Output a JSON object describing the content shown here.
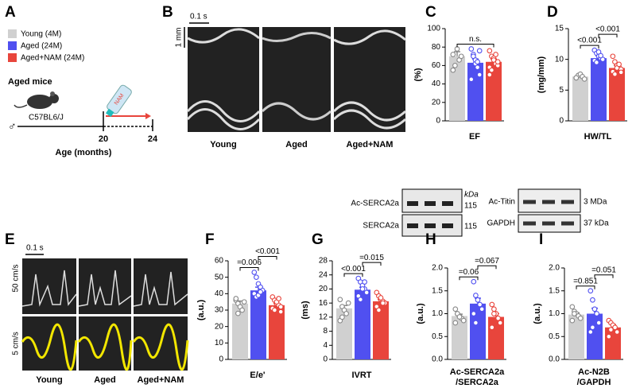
{
  "panels": {
    "A": {
      "letter": "A",
      "groups": [
        {
          "name": "Young (4M)",
          "color": "#d0d0d0"
        },
        {
          "name": "Aged (24M)",
          "color": "#5050f0"
        },
        {
          "name": "Aged+NAM (24M)",
          "color": "#e8453c"
        }
      ],
      "heading": "Aged mice",
      "strain": "C57BL6/J",
      "sex": "♂",
      "bottle": "NAM",
      "start": "20",
      "end": "24",
      "axis": "Age (months)"
    },
    "B": {
      "letter": "B",
      "time_scale": "0.1 s",
      "length_scale": "1 mm",
      "labels": [
        "Young",
        "Aged",
        "Aged+NAM"
      ]
    },
    "E": {
      "letter": "E",
      "time_scale": "0.1 s",
      "top_scale": "50 cm/s",
      "bottom_scale": "5 cm/s",
      "labels": [
        "Young",
        "Aged",
        "Aged+NAM"
      ]
    },
    "blot_H": {
      "band1": "Ac-SERCA2a",
      "unit": "kDa",
      "size1": "115",
      "band2": "SERCA2a",
      "size2": "115"
    },
    "blot_I": {
      "band1": "Ac-Titin",
      "size1": "3 MDa",
      "band2": "GAPDH",
      "size2": "37 kDa"
    }
  },
  "chart_data": [
    {
      "type": "bar",
      "panel": "C",
      "ylabel": "(%)",
      "xlabel": "EF",
      "categories": [
        null,
        null,
        null
      ],
      "colors": [
        "#d0d0d0",
        "#5050f0",
        "#e8453c"
      ],
      "values": [
        70,
        63,
        64
      ],
      "errors": [
        5,
        4,
        3
      ],
      "points": [
        [
          72,
          60,
          78,
          66,
          70,
          55
        ],
        [
          78,
          72,
          62,
          58,
          50,
          45,
          70,
          66,
          64,
          76
        ],
        [
          76,
          70,
          68,
          62,
          60,
          58,
          55,
          66,
          72,
          64,
          50
        ]
      ],
      "ylim": [
        0,
        100
      ],
      "yticks": [
        0,
        20,
        40,
        60,
        80,
        100
      ],
      "annotations": [
        {
          "label": "n.s.",
          "bars": [
            0,
            2
          ]
        }
      ]
    },
    {
      "type": "bar",
      "panel": "D",
      "ylabel": "(mg/mm)",
      "xlabel": "HW/TL",
      "categories": [
        null,
        null,
        null
      ],
      "colors": [
        "#d0d0d0",
        "#5050f0",
        "#e8453c"
      ],
      "values": [
        7.2,
        10.2,
        8.6
      ],
      "errors": [
        0.2,
        0.4,
        0.4
      ],
      "points": [
        [
          7.0,
          7.4,
          7.6,
          7.2,
          6.8,
          7.0
        ],
        [
          11.5,
          11.0,
          10.5,
          10.2,
          10.0,
          9.8,
          9.5,
          11.2,
          10.6
        ],
        [
          10.5,
          9.6,
          9.0,
          8.8,
          8.4,
          8.0,
          7.6,
          8.6,
          9.2,
          7.9
        ]
      ],
      "ylim": [
        0,
        15
      ],
      "yticks": [
        0,
        5,
        10,
        15
      ],
      "annotations": [
        {
          "label": "<0.001",
          "bars": [
            0,
            1
          ]
        },
        {
          "label": "<0.001",
          "bars": [
            1,
            2
          ]
        }
      ]
    },
    {
      "type": "bar",
      "panel": "F",
      "ylabel": "(a.u.)",
      "xlabel": "E/e'",
      "categories": [
        null,
        null,
        null
      ],
      "colors": [
        "#d0d0d0",
        "#5050f0",
        "#e8453c"
      ],
      "values": [
        34,
        42,
        33
      ],
      "errors": [
        1.5,
        2,
        1
      ],
      "points": [
        [
          36,
          34,
          32,
          30,
          35,
          37,
          28
        ],
        [
          53,
          50,
          46,
          44,
          42,
          40,
          38,
          39,
          41
        ],
        [
          38,
          36,
          34,
          33,
          32,
          31,
          30,
          35,
          37,
          29
        ]
      ],
      "ylim": [
        0,
        60
      ],
      "yticks": [
        0,
        10,
        20,
        30,
        40,
        50,
        60
      ],
      "annotations": [
        {
          "label": "=0.006",
          "bars": [
            0,
            1
          ]
        },
        {
          "label": "<0.001",
          "bars": [
            1,
            2
          ]
        }
      ]
    },
    {
      "type": "bar",
      "panel": "G",
      "ylabel": "(ms)",
      "xlabel": "IVRT",
      "categories": [
        null,
        null,
        null
      ],
      "colors": [
        "#d0d0d0",
        "#5050f0",
        "#e8453c"
      ],
      "values": [
        14.5,
        19.8,
        16.5
      ],
      "errors": [
        0.8,
        0.7,
        0.5
      ],
      "points": [
        [
          17,
          15,
          14,
          13,
          16,
          11,
          12
        ],
        [
          23,
          22,
          21,
          20,
          19,
          18,
          17,
          20,
          22
        ],
        [
          19,
          18,
          17,
          16.5,
          16,
          15,
          14,
          17.5,
          16
        ]
      ],
      "ylim": [
        0,
        28
      ],
      "yticks": [
        0,
        4,
        8,
        12,
        16,
        20,
        24,
        28
      ],
      "annotations": [
        {
          "label": "<0.001",
          "bars": [
            0,
            1
          ]
        },
        {
          "label": "=0.015",
          "bars": [
            1,
            2
          ]
        }
      ]
    },
    {
      "type": "bar",
      "panel": "H",
      "ylabel": "(a.u.)",
      "xlabel": [
        "Ac-SERCA2a",
        "/SERCA2a"
      ],
      "categories": [
        null,
        null,
        null
      ],
      "colors": [
        "#d0d0d0",
        "#5050f0",
        "#e8453c"
      ],
      "values": [
        0.95,
        1.22,
        0.93
      ],
      "errors": [
        0.04,
        0.12,
        0.07
      ],
      "points": [
        [
          1.1,
          1.0,
          0.95,
          0.9,
          0.85,
          0.8,
          1.0,
          0.93
        ],
        [
          1.7,
          1.4,
          1.3,
          1.2,
          1.1,
          1.0,
          0.8
        ],
        [
          1.2,
          1.1,
          1.0,
          0.9,
          0.8,
          0.7,
          1.0
        ]
      ],
      "ylim": [
        0,
        2
      ],
      "yticks": [
        {
          "value": 0,
          "label": "0.0"
        },
        0.5,
        {
          "value": 1,
          "label": "1.0"
        },
        1.5,
        {
          "value": 2,
          "label": "2.0"
        }
      ],
      "annotations": [
        {
          "label": "=0.06",
          "bars": [
            0,
            1
          ]
        },
        {
          "label": "=0.067",
          "bars": [
            1,
            2
          ]
        }
      ]
    },
    {
      "type": "bar",
      "panel": "I",
      "ylabel": "(a.u.)",
      "xlabel": [
        "Ac-N2B",
        "/GAPDH"
      ],
      "categories": [
        null,
        null,
        null
      ],
      "colors": [
        "#d0d0d0",
        "#5050f0",
        "#e8453c"
      ],
      "values": [
        0.98,
        1.0,
        0.7
      ],
      "errors": [
        0.04,
        0.12,
        0.06
      ],
      "points": [
        [
          1.15,
          1.05,
          1.0,
          0.95,
          0.9,
          0.85,
          1.0
        ],
        [
          1.5,
          1.3,
          1.1,
          1.0,
          0.8,
          0.6,
          0.7
        ],
        [
          0.85,
          0.8,
          0.75,
          0.7,
          0.6,
          0.5,
          0.65
        ]
      ],
      "ylim": [
        0,
        2
      ],
      "yticks": [
        {
          "value": 0,
          "label": "0.0"
        },
        0.5,
        {
          "value": 1,
          "label": "1.0"
        },
        1.5,
        {
          "value": 2,
          "label": "2.0"
        }
      ],
      "annotations": [
        {
          "label": "=0.851",
          "bars": [
            0,
            1
          ]
        },
        {
          "label": "=0.051",
          "bars": [
            1,
            2
          ]
        }
      ]
    }
  ]
}
